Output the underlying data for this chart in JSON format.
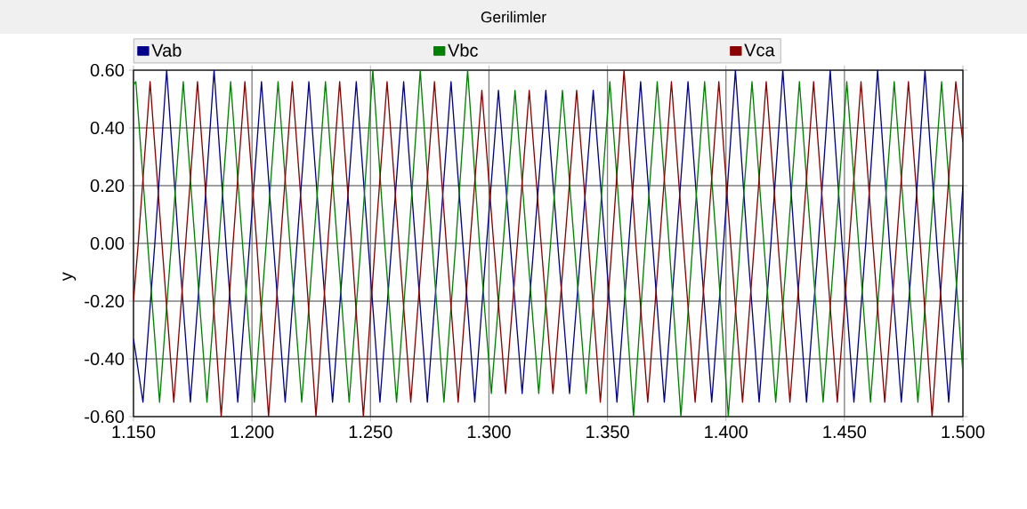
{
  "chart_data": {
    "type": "line",
    "title": "Gerilimler",
    "ylabel": "y",
    "xlim": [
      1.15,
      1.5
    ],
    "ylim": [
      -0.6,
      0.6
    ],
    "xticks": [
      {
        "value": 1.15,
        "label": "1.150"
      },
      {
        "value": 1.2,
        "label": "1.200"
      },
      {
        "value": 1.25,
        "label": "1.250"
      },
      {
        "value": 1.3,
        "label": "1.300"
      },
      {
        "value": 1.35,
        "label": "1.350"
      },
      {
        "value": 1.4,
        "label": "1.400"
      },
      {
        "value": 1.45,
        "label": "1.450"
      },
      {
        "value": 1.5,
        "label": "1.500"
      }
    ],
    "yticks": [
      {
        "value": -0.6,
        "label": "-0.60"
      },
      {
        "value": -0.4,
        "label": "-0.40"
      },
      {
        "value": -0.2,
        "label": "-0.20"
      },
      {
        "value": 0,
        "label": "0.00"
      },
      {
        "value": 0.2,
        "label": "0.20"
      },
      {
        "value": 0.4,
        "label": "0.40"
      },
      {
        "value": 0.6,
        "label": "0.60"
      }
    ],
    "grid": true,
    "legend": "top",
    "marker": "none",
    "line_style": "solid",
    "series": [
      {
        "name": "Vab",
        "color": "#00008b",
        "x": [
          1.15,
          1.154,
          1.159,
          1.164,
          1.169,
          1.174,
          1.179,
          1.184,
          1.189,
          1.194,
          1.199,
          1.204,
          1.209,
          1.214,
          1.219,
          1.224,
          1.229,
          1.234,
          1.239,
          1.244,
          1.249,
          1.254,
          1.259,
          1.264,
          1.269,
          1.274,
          1.279,
          1.284,
          1.289,
          1.294,
          1.299,
          1.304,
          1.309,
          1.314,
          1.319,
          1.324,
          1.329,
          1.334,
          1.339,
          1.344,
          1.349,
          1.354,
          1.359,
          1.364,
          1.369,
          1.374,
          1.379,
          1.384,
          1.389,
          1.394,
          1.399,
          1.404,
          1.409,
          1.414,
          1.419,
          1.424,
          1.429,
          1.434,
          1.439,
          1.444,
          1.449,
          1.454,
          1.459,
          1.464,
          1.469,
          1.474,
          1.479,
          1.484,
          1.489,
          1.494,
          1.5
        ],
        "values": [
          -0.33,
          -0.55,
          0,
          0.6,
          0,
          -0.55,
          0,
          0.6,
          0,
          -0.55,
          0,
          0.56,
          0,
          -0.55,
          0,
          0.56,
          0,
          -0.55,
          0,
          0.56,
          0,
          -0.55,
          0,
          0.56,
          0,
          -0.55,
          0,
          0.56,
          0,
          -0.55,
          0,
          0.53,
          0,
          -0.52,
          0,
          0.53,
          0,
          -0.52,
          0,
          0.53,
          0,
          -0.55,
          0,
          0.56,
          0,
          -0.55,
          0,
          0.56,
          0,
          -0.55,
          0,
          0.6,
          0,
          -0.55,
          0,
          0.6,
          0,
          -0.55,
          0,
          0.6,
          0,
          -0.55,
          0,
          0.6,
          0,
          -0.55,
          0,
          0.6,
          0,
          -0.55,
          0.2
        ]
      },
      {
        "name": "Vbc",
        "color": "#008000",
        "x": [
          1.15,
          1.151,
          1.156,
          1.161,
          1.166,
          1.171,
          1.176,
          1.181,
          1.186,
          1.191,
          1.196,
          1.201,
          1.206,
          1.211,
          1.216,
          1.221,
          1.226,
          1.231,
          1.236,
          1.241,
          1.246,
          1.251,
          1.256,
          1.261,
          1.266,
          1.271,
          1.276,
          1.281,
          1.286,
          1.291,
          1.296,
          1.301,
          1.306,
          1.311,
          1.316,
          1.321,
          1.326,
          1.331,
          1.336,
          1.341,
          1.346,
          1.351,
          1.356,
          1.361,
          1.366,
          1.371,
          1.376,
          1.381,
          1.386,
          1.391,
          1.396,
          1.401,
          1.406,
          1.411,
          1.416,
          1.421,
          1.426,
          1.431,
          1.436,
          1.441,
          1.446,
          1.451,
          1.456,
          1.461,
          1.466,
          1.471,
          1.476,
          1.481,
          1.486,
          1.491,
          1.496,
          1.5
        ],
        "values": [
          0.55,
          0.56,
          0,
          -0.55,
          0,
          0.56,
          0,
          -0.55,
          0,
          0.56,
          0,
          -0.55,
          0,
          0.56,
          0,
          -0.55,
          0,
          0.56,
          0,
          -0.55,
          0,
          0.6,
          0,
          -0.55,
          0,
          0.6,
          0,
          -0.55,
          0,
          0.6,
          0,
          -0.52,
          0,
          0.53,
          0,
          -0.52,
          0,
          0.53,
          0,
          -0.52,
          0,
          0.56,
          0,
          -0.6,
          0,
          0.56,
          0,
          -0.6,
          0,
          0.56,
          0,
          -0.6,
          0,
          0.56,
          0,
          -0.55,
          0,
          0.56,
          0,
          -0.55,
          0,
          0.56,
          0,
          -0.55,
          0,
          0.56,
          0,
          -0.55,
          0,
          0.56,
          0,
          -0.45
        ]
      },
      {
        "name": "Vca",
        "color": "#8b0000",
        "x": [
          1.15,
          1.152,
          1.157,
          1.162,
          1.167,
          1.172,
          1.177,
          1.182,
          1.187,
          1.192,
          1.197,
          1.202,
          1.207,
          1.212,
          1.217,
          1.222,
          1.227,
          1.232,
          1.237,
          1.242,
          1.247,
          1.252,
          1.257,
          1.262,
          1.267,
          1.272,
          1.277,
          1.282,
          1.287,
          1.292,
          1.297,
          1.302,
          1.307,
          1.312,
          1.317,
          1.322,
          1.327,
          1.332,
          1.337,
          1.342,
          1.347,
          1.352,
          1.357,
          1.362,
          1.367,
          1.372,
          1.377,
          1.382,
          1.387,
          1.392,
          1.397,
          1.402,
          1.407,
          1.412,
          1.417,
          1.422,
          1.427,
          1.432,
          1.437,
          1.442,
          1.447,
          1.452,
          1.457,
          1.462,
          1.467,
          1.472,
          1.477,
          1.482,
          1.487,
          1.492,
          1.497,
          1.5
        ],
        "values": [
          -0.2,
          0,
          0.56,
          0,
          -0.55,
          0,
          0.56,
          0,
          -0.6,
          0,
          0.56,
          0,
          -0.6,
          0,
          0.56,
          0,
          -0.6,
          0,
          0.56,
          0,
          -0.6,
          0,
          0.56,
          0,
          -0.55,
          0,
          0.56,
          0,
          -0.55,
          0,
          0.53,
          0,
          -0.52,
          0,
          0.53,
          0,
          -0.52,
          0,
          0.53,
          0,
          -0.55,
          0,
          0.6,
          0,
          -0.55,
          0,
          0.56,
          0,
          -0.55,
          0,
          0.56,
          0,
          -0.55,
          0,
          0.56,
          0,
          -0.55,
          0,
          0.56,
          0,
          -0.55,
          0,
          0.56,
          0,
          -0.55,
          0,
          0.56,
          0,
          -0.6,
          0,
          0.56,
          0.35
        ]
      }
    ]
  }
}
